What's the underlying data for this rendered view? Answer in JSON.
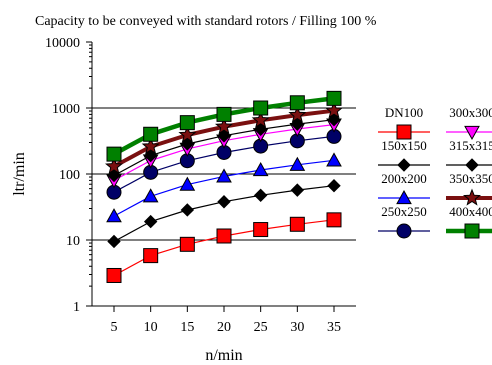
{
  "chart_data": {
    "type": "line",
    "title": "Capacity to be conveyed with standard rotors / Filling  100 %",
    "xlabel": "n/min",
    "ylabel": "ltr/min",
    "x": [
      5,
      10,
      15,
      20,
      25,
      30,
      35
    ],
    "xlim": [
      2,
      38
    ],
    "ylim": [
      1,
      10000
    ],
    "y_scale": "log",
    "y_ticks": [
      1,
      10,
      100,
      1000,
      10000
    ],
    "y_tick_labels": [
      "1",
      "10",
      "100",
      "1000",
      "10000"
    ],
    "grid": "horizontal",
    "legend_position": "right",
    "series": [
      {
        "name": "DN100",
        "values": [
          2.9,
          5.8,
          8.6,
          11.5,
          14.4,
          17.3,
          20.2
        ],
        "color": "#ff0000",
        "marker": "square"
      },
      {
        "name": "150x150",
        "values": [
          9.5,
          19,
          28.5,
          38,
          47.5,
          57,
          66.5
        ],
        "color": "#000000",
        "marker": "diamond"
      },
      {
        "name": "200x200",
        "values": [
          23,
          46,
          69,
          92,
          115,
          138,
          161
        ],
        "color": "#0000ff",
        "marker": "triangle"
      },
      {
        "name": "250x250",
        "values": [
          53,
          106,
          159,
          212,
          265,
          318,
          371
        ],
        "color": "#000066",
        "marker": "circle"
      },
      {
        "name": "300x300",
        "values": [
          80,
          160,
          240,
          320,
          400,
          480,
          560
        ],
        "color": "#ff00ff",
        "marker": "triangle-down"
      },
      {
        "name": "315x315",
        "values": [
          95,
          190,
          285,
          380,
          475,
          570,
          665
        ],
        "color": "#000000",
        "marker": "diamond"
      },
      {
        "name": "350x350",
        "values": [
          130,
          260,
          390,
          520,
          650,
          780,
          910
        ],
        "color": "#7a1010",
        "marker": "star"
      },
      {
        "name": "400x400",
        "values": [
          200,
          400,
          600,
          800,
          1000,
          1200,
          1400
        ],
        "color": "#008000",
        "marker": "square"
      }
    ]
  }
}
